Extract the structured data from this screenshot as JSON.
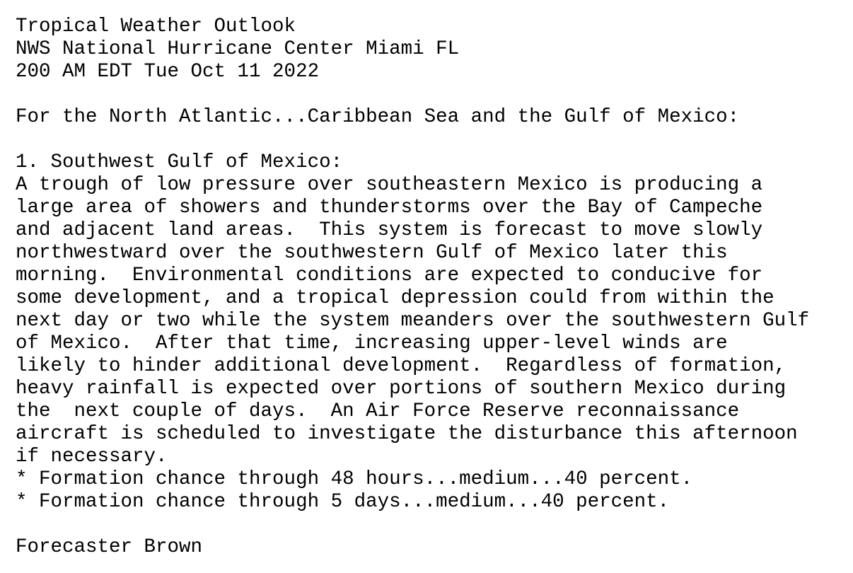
{
  "header": {
    "title": "Tropical Weather Outlook",
    "office": "NWS National Hurricane Center Miami FL",
    "issued": "200 AM EDT Tue Oct 11 2022"
  },
  "region": "For the North Atlantic...Caribbean Sea and the Gulf of Mexico:",
  "system": {
    "heading": "1. Southwest Gulf of Mexico:",
    "body_lines": [
      "A trough of low pressure over southeastern Mexico is producing a",
      "large area of showers and thunderstorms over the Bay of Campeche",
      "and adjacent land areas.  This system is forecast to move slowly",
      "northwestward over the southwestern Gulf of Mexico later this",
      "morning.  Environmental conditions are expected to conducive for",
      "some development, and a tropical depression could from within the",
      "next day or two while the system meanders over the southwestern Gulf",
      "of Mexico.  After that time, increasing upper-level winds are",
      "likely to hinder additional development.  Regardless of formation,",
      "heavy rainfall is expected over portions of southern Mexico during",
      "the  next couple of days.  An Air Force Reserve reconnaissance",
      "aircraft is scheduled to investigate the disturbance this afternoon",
      "if necessary."
    ],
    "chance_48h": "* Formation chance through 48 hours...medium...40 percent.",
    "chance_5d": "* Formation chance through 5 days...medium...40 percent."
  },
  "signature": "Forecaster Brown"
}
